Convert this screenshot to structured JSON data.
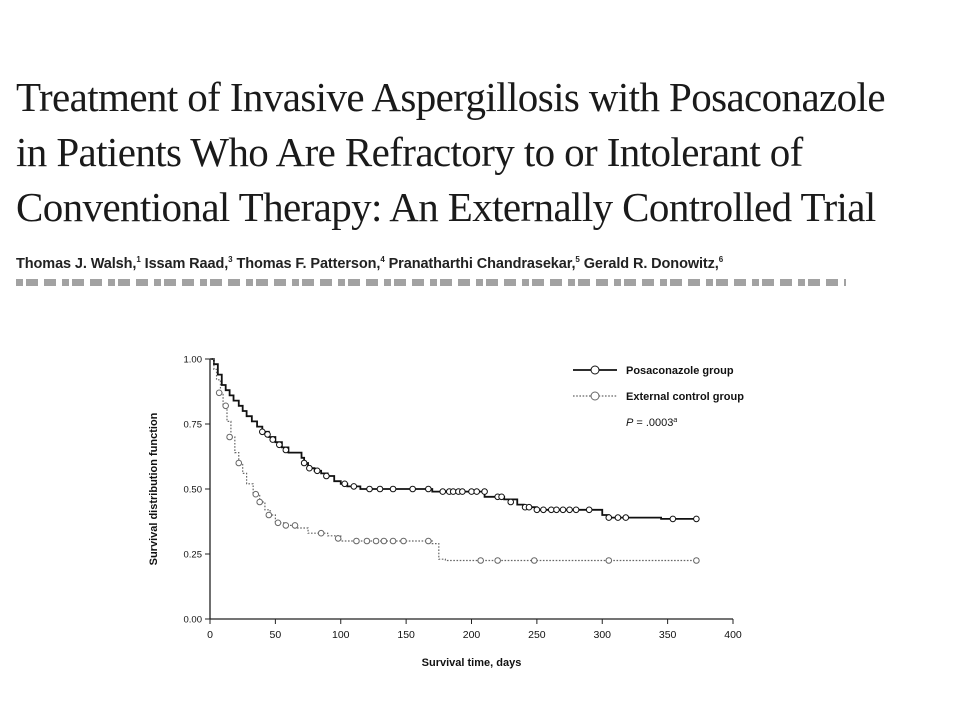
{
  "paper": {
    "title_lines": [
      "Treatment of Invasive Aspergillosis with Posaconazole",
      "in Patients Who Are Refractory to or Intolerant of",
      "Conventional Therapy: An Externally Controlled Trial"
    ],
    "authors": [
      {
        "name": "Thomas J. Walsh,",
        "sup": "1"
      },
      {
        "name": "Issam Raad,",
        "sup": "3"
      },
      {
        "name": "Thomas F. Patterson,",
        "sup": "4"
      },
      {
        "name": "Pranatharthi Chandrasekar,",
        "sup": "5"
      },
      {
        "name": "Gerald R. Donowitz,",
        "sup": "6"
      }
    ]
  },
  "chart_data": {
    "type": "line",
    "xlabel": "Survival time, days",
    "ylabel": "Survival distribution function",
    "xlim": [
      0,
      400
    ],
    "ylim": [
      0,
      1
    ],
    "x_ticks": [
      0,
      50,
      100,
      150,
      200,
      250,
      300,
      350,
      400
    ],
    "y_ticks": [
      "0.00",
      "0.25",
      "0.50",
      "0.75",
      "1.00"
    ],
    "legend_position": "top-right",
    "annotation": {
      "text": "P = .0003",
      "sup": "a"
    },
    "series": [
      {
        "name": "Posaconazole group",
        "style": "solid",
        "color": "#111111",
        "steps": [
          [
            0,
            1.0
          ],
          [
            3,
            0.98
          ],
          [
            6,
            0.94
          ],
          [
            9,
            0.9
          ],
          [
            12,
            0.88
          ],
          [
            15,
            0.86
          ],
          [
            18,
            0.84
          ],
          [
            22,
            0.82
          ],
          [
            25,
            0.8
          ],
          [
            28,
            0.78
          ],
          [
            32,
            0.76
          ],
          [
            36,
            0.74
          ],
          [
            40,
            0.72
          ],
          [
            45,
            0.7
          ],
          [
            50,
            0.68
          ],
          [
            55,
            0.66
          ],
          [
            60,
            0.64
          ],
          [
            70,
            0.62
          ],
          [
            72,
            0.6
          ],
          [
            75,
            0.58
          ],
          [
            80,
            0.57
          ],
          [
            85,
            0.56
          ],
          [
            90,
            0.55
          ],
          [
            95,
            0.53
          ],
          [
            100,
            0.52
          ],
          [
            105,
            0.51
          ],
          [
            115,
            0.5
          ],
          [
            170,
            0.49
          ],
          [
            210,
            0.47
          ],
          [
            225,
            0.46
          ],
          [
            235,
            0.44
          ],
          [
            240,
            0.43
          ],
          [
            250,
            0.42
          ],
          [
            300,
            0.4
          ],
          [
            305,
            0.39
          ],
          [
            345,
            0.385
          ],
          [
            373,
            0.385
          ]
        ],
        "censored": [
          [
            40,
            0.72
          ],
          [
            44,
            0.71
          ],
          [
            48,
            0.69
          ],
          [
            53,
            0.67
          ],
          [
            58,
            0.65
          ],
          [
            72,
            0.6
          ],
          [
            76,
            0.58
          ],
          [
            82,
            0.57
          ],
          [
            89,
            0.55
          ],
          [
            103,
            0.52
          ],
          [
            110,
            0.51
          ],
          [
            122,
            0.5
          ],
          [
            130,
            0.5
          ],
          [
            140,
            0.5
          ],
          [
            155,
            0.5
          ],
          [
            167,
            0.5
          ],
          [
            178,
            0.49
          ],
          [
            183,
            0.49
          ],
          [
            186,
            0.49
          ],
          [
            190,
            0.49
          ],
          [
            193,
            0.49
          ],
          [
            200,
            0.49
          ],
          [
            204,
            0.49
          ],
          [
            210,
            0.49
          ],
          [
            220,
            0.47
          ],
          [
            223,
            0.47
          ],
          [
            230,
            0.45
          ],
          [
            241,
            0.43
          ],
          [
            244,
            0.43
          ],
          [
            250,
            0.42
          ],
          [
            255,
            0.42
          ],
          [
            261,
            0.42
          ],
          [
            265,
            0.42
          ],
          [
            270,
            0.42
          ],
          [
            275,
            0.42
          ],
          [
            280,
            0.42
          ],
          [
            290,
            0.42
          ],
          [
            305,
            0.39
          ],
          [
            312,
            0.39
          ],
          [
            318,
            0.39
          ],
          [
            354,
            0.385
          ],
          [
            372,
            0.385
          ]
        ]
      },
      {
        "name": "External control group",
        "style": "dotted",
        "color": "#666666",
        "steps": [
          [
            0,
            1.0
          ],
          [
            3,
            0.96
          ],
          [
            5,
            0.92
          ],
          [
            8,
            0.87
          ],
          [
            10,
            0.82
          ],
          [
            13,
            0.76
          ],
          [
            16,
            0.7
          ],
          [
            19,
            0.64
          ],
          [
            22,
            0.6
          ],
          [
            25,
            0.56
          ],
          [
            28,
            0.52
          ],
          [
            33,
            0.48
          ],
          [
            38,
            0.45
          ],
          [
            42,
            0.42
          ],
          [
            46,
            0.4
          ],
          [
            50,
            0.37
          ],
          [
            58,
            0.36
          ],
          [
            65,
            0.35
          ],
          [
            75,
            0.33
          ],
          [
            90,
            0.32
          ],
          [
            100,
            0.3
          ],
          [
            170,
            0.29
          ],
          [
            175,
            0.23
          ],
          [
            180,
            0.225
          ],
          [
            373,
            0.225
          ]
        ],
        "censored": [
          [
            7,
            0.87
          ],
          [
            12,
            0.82
          ],
          [
            15,
            0.7
          ],
          [
            22,
            0.6
          ],
          [
            35,
            0.48
          ],
          [
            38,
            0.45
          ],
          [
            45,
            0.4
          ],
          [
            52,
            0.37
          ],
          [
            58,
            0.36
          ],
          [
            65,
            0.36
          ],
          [
            85,
            0.33
          ],
          [
            98,
            0.31
          ],
          [
            112,
            0.3
          ],
          [
            120,
            0.3
          ],
          [
            127,
            0.3
          ],
          [
            133,
            0.3
          ],
          [
            140,
            0.3
          ],
          [
            148,
            0.3
          ],
          [
            167,
            0.3
          ],
          [
            207,
            0.225
          ],
          [
            220,
            0.225
          ],
          [
            248,
            0.225
          ],
          [
            305,
            0.225
          ],
          [
            372,
            0.225
          ]
        ]
      }
    ]
  }
}
